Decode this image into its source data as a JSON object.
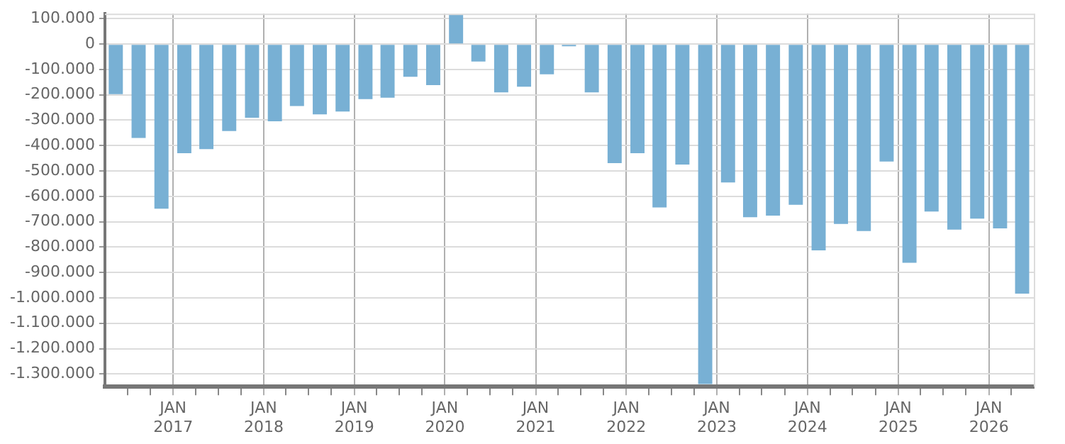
{
  "chart_data": {
    "type": "bar",
    "color": "#78b0d4",
    "x": [
      "2016-05-15",
      "2016-08-15",
      "2016-11-15",
      "2017-02-15",
      "2017-05-15",
      "2017-08-15",
      "2017-11-15",
      "2018-02-15",
      "2018-05-15",
      "2018-08-15",
      "2018-11-15",
      "2019-02-15",
      "2019-05-15",
      "2019-08-15",
      "2019-11-15",
      "2020-02-15",
      "2020-05-15",
      "2020-08-15",
      "2020-11-15",
      "2021-02-15",
      "2021-05-15",
      "2021-08-15",
      "2021-11-15",
      "2022-02-15",
      "2022-05-15",
      "2022-08-15",
      "2022-11-15",
      "2023-02-15",
      "2023-05-15",
      "2023-08-15",
      "2023-11-15",
      "2024-02-15",
      "2024-05-15",
      "2024-08-15",
      "2024-11-15",
      "2025-02-15",
      "2025-05-15",
      "2025-08-15",
      "2025-11-15",
      "2026-02-15",
      "2026-05-15"
    ],
    "values": [
      -197000,
      -370000,
      -649000,
      -430000,
      -414000,
      -343000,
      -290000,
      -304000,
      -244000,
      -277000,
      -266000,
      -217000,
      -211000,
      -129000,
      -162000,
      115000,
      -69000,
      -190000,
      -168000,
      -119000,
      -9000,
      -190000,
      -469000,
      -430000,
      -644000,
      -475000,
      -1340000,
      -545000,
      -682000,
      -676000,
      -633000,
      -813000,
      -709000,
      -737000,
      -463000,
      -862000,
      -660000,
      -731000,
      -688000,
      -726000,
      -983000
    ],
    "xlim": [
      "2016-04-01",
      "2026-07-01"
    ],
    "xticks": [
      {
        "value": "2016-07-01",
        "label": null
      },
      {
        "value": "2016-10-01",
        "label": null
      },
      {
        "value": "2017-01-01",
        "label": "JAN 2017"
      },
      {
        "value": "2017-04-01",
        "label": null
      },
      {
        "value": "2017-07-01",
        "label": null
      },
      {
        "value": "2017-10-01",
        "label": null
      },
      {
        "value": "2018-01-01",
        "label": "JAN 2018"
      },
      {
        "value": "2018-04-01",
        "label": null
      },
      {
        "value": "2018-07-01",
        "label": null
      },
      {
        "value": "2018-10-01",
        "label": null
      },
      {
        "value": "2019-01-01",
        "label": "JAN 2019"
      },
      {
        "value": "2019-04-01",
        "label": null
      },
      {
        "value": "2019-07-01",
        "label": null
      },
      {
        "value": "2019-10-01",
        "label": null
      },
      {
        "value": "2020-01-01",
        "label": "JAN 2020"
      },
      {
        "value": "2020-04-01",
        "label": null
      },
      {
        "value": "2020-07-01",
        "label": null
      },
      {
        "value": "2020-10-01",
        "label": null
      },
      {
        "value": "2021-01-01",
        "label": "JAN 2021"
      },
      {
        "value": "2021-04-01",
        "label": null
      },
      {
        "value": "2021-07-01",
        "label": null
      },
      {
        "value": "2021-10-01",
        "label": null
      },
      {
        "value": "2022-01-01",
        "label": "JAN 2022"
      },
      {
        "value": "2022-04-01",
        "label": null
      },
      {
        "value": "2022-07-01",
        "label": null
      },
      {
        "value": "2022-10-01",
        "label": null
      },
      {
        "value": "2023-01-01",
        "label": "JAN 2023"
      },
      {
        "value": "2023-04-01",
        "label": null
      },
      {
        "value": "2023-07-01",
        "label": null
      },
      {
        "value": "2023-10-01",
        "label": null
      },
      {
        "value": "2024-01-01",
        "label": "JAN 2024"
      },
      {
        "value": "2024-04-01",
        "label": null
      },
      {
        "value": "2024-07-01",
        "label": null
      },
      {
        "value": "2024-10-01",
        "label": null
      },
      {
        "value": "2025-01-01",
        "label": "JAN 2025"
      },
      {
        "value": "2025-04-01",
        "label": null
      },
      {
        "value": "2025-07-01",
        "label": null
      },
      {
        "value": "2025-10-01",
        "label": null
      },
      {
        "value": "2026-01-01",
        "label": "JAN 2026"
      },
      {
        "value": "2026-04-01",
        "label": null
      }
    ],
    "ylim": [
      -1350000,
      120000
    ],
    "yticks": [
      {
        "value": 100000,
        "label": "100.000"
      },
      0,
      {
        "value": -100000,
        "label": "-100.000"
      },
      {
        "value": -200000,
        "label": "-200.000"
      },
      {
        "value": -300000,
        "label": "-300.000"
      },
      {
        "value": -400000,
        "label": "-400.000"
      },
      {
        "value": -500000,
        "label": "-500.000"
      },
      {
        "value": -600000,
        "label": "-600.000"
      },
      {
        "value": -700000,
        "label": "-700.000"
      },
      {
        "value": -800000,
        "label": "-800.000"
      },
      {
        "value": -900000,
        "label": "-900.000"
      },
      {
        "value": -1000000,
        "label": "-1.000.000"
      },
      {
        "value": -1100000,
        "label": "-1.100.000"
      },
      {
        "value": -1200000,
        "label": "-1.200.000"
      },
      {
        "value": -1300000,
        "label": "-1.300.000"
      }
    ],
    "grid": true
  }
}
